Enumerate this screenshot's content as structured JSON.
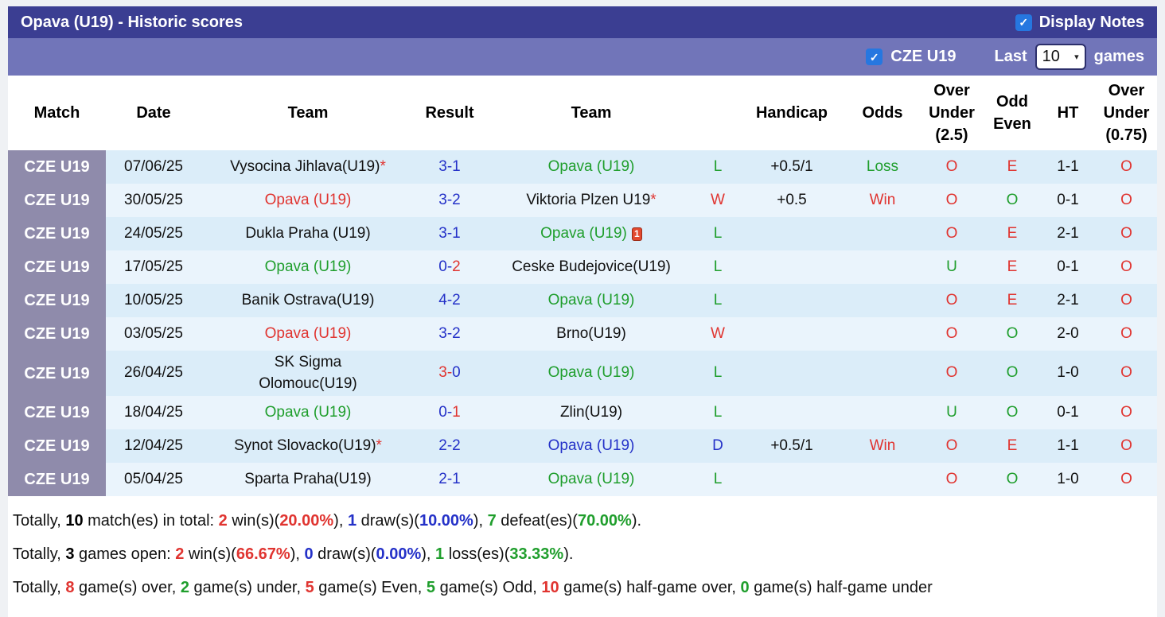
{
  "colors": {
    "header_bar": "#3b3e92",
    "filter_bar": "#7175b9",
    "league_cell": "#8f8bab",
    "row_a": "#dbedf9",
    "row_b": "#eaf4fc",
    "red": "#e03430",
    "green": "#1f9e2c",
    "blue": "#2431c8",
    "checkbox_blue": "#2677e0"
  },
  "icons": {
    "check": "✓",
    "chevron_down": "▾"
  },
  "header": {
    "title": "Opava (U19) - Historic scores",
    "display_notes": {
      "label": "Display Notes",
      "checked": true
    }
  },
  "filter_bar": {
    "league": {
      "label": "CZE U19",
      "checked": true
    },
    "last_label": "Last",
    "games_value": "10",
    "games_label": "games"
  },
  "table": {
    "headers": {
      "match": "Match",
      "date": "Date",
      "team_home": "Team",
      "result": "Result",
      "team_away": "Team",
      "outcome": "",
      "handicap": "Handicap",
      "odds": "Odds",
      "over_under_25": "Over\nUnder\n(2.5)",
      "odd_even": "Odd\nEven",
      "ht": "HT",
      "over_under_075": "Over\nUnder\n(0.75)"
    },
    "rows": [
      {
        "league": "CZE U19",
        "date": "07/06/25",
        "home": {
          "name": "Vysocina Jihlava(U19)",
          "star": "*",
          "card": "",
          "color": "black"
        },
        "result": {
          "h": "3",
          "sep": "-",
          "a": "1",
          "hc": "blue",
          "ac": "blue"
        },
        "away": {
          "name": "Opava (U19)",
          "star": "",
          "card": "",
          "color": "green"
        },
        "outcome": {
          "text": "L",
          "color": "green"
        },
        "handicap": "+0.5/1",
        "odds": {
          "text": "Loss",
          "color": "green"
        },
        "ou25": {
          "text": "O",
          "color": "red"
        },
        "odd_even": {
          "text": "E",
          "color": "red"
        },
        "ht": "1-1",
        "ou075": {
          "text": "O",
          "color": "red"
        }
      },
      {
        "league": "CZE U19",
        "date": "30/05/25",
        "home": {
          "name": "Opava (U19)",
          "star": "",
          "card": "",
          "color": "red"
        },
        "result": {
          "h": "3",
          "sep": "-",
          "a": "2",
          "hc": "blue",
          "ac": "blue"
        },
        "away": {
          "name": "Viktoria Plzen U19",
          "star": "*",
          "card": "",
          "color": "black"
        },
        "outcome": {
          "text": "W",
          "color": "red"
        },
        "handicap": "+0.5",
        "odds": {
          "text": "Win",
          "color": "red"
        },
        "ou25": {
          "text": "O",
          "color": "red"
        },
        "odd_even": {
          "text": "O",
          "color": "green"
        },
        "ht": "0-1",
        "ou075": {
          "text": "O",
          "color": "red"
        }
      },
      {
        "league": "CZE U19",
        "date": "24/05/25",
        "home": {
          "name": "Dukla Praha (U19)",
          "star": "",
          "card": "",
          "color": "black"
        },
        "result": {
          "h": "3",
          "sep": "-",
          "a": "1",
          "hc": "blue",
          "ac": "blue"
        },
        "away": {
          "name": "Opava (U19)",
          "star": "",
          "card": "1",
          "color": "green"
        },
        "outcome": {
          "text": "L",
          "color": "green"
        },
        "handicap": "",
        "odds": {
          "text": "",
          "color": "black"
        },
        "ou25": {
          "text": "O",
          "color": "red"
        },
        "odd_even": {
          "text": "E",
          "color": "red"
        },
        "ht": "2-1",
        "ou075": {
          "text": "O",
          "color": "red"
        }
      },
      {
        "league": "CZE U19",
        "date": "17/05/25",
        "home": {
          "name": "Opava (U19)",
          "star": "",
          "card": "",
          "color": "green"
        },
        "result": {
          "h": "0",
          "sep": "-",
          "a": "2",
          "hc": "blue",
          "ac": "red"
        },
        "away": {
          "name": "Ceske Budejovice(U19)",
          "star": "",
          "card": "",
          "color": "black"
        },
        "outcome": {
          "text": "L",
          "color": "green"
        },
        "handicap": "",
        "odds": {
          "text": "",
          "color": "black"
        },
        "ou25": {
          "text": "U",
          "color": "green"
        },
        "odd_even": {
          "text": "E",
          "color": "red"
        },
        "ht": "0-1",
        "ou075": {
          "text": "O",
          "color": "red"
        }
      },
      {
        "league": "CZE U19",
        "date": "10/05/25",
        "home": {
          "name": "Banik Ostrava(U19)",
          "star": "",
          "card": "",
          "color": "black"
        },
        "result": {
          "h": "4",
          "sep": "-",
          "a": "2",
          "hc": "blue",
          "ac": "blue"
        },
        "away": {
          "name": "Opava (U19)",
          "star": "",
          "card": "",
          "color": "green"
        },
        "outcome": {
          "text": "L",
          "color": "green"
        },
        "handicap": "",
        "odds": {
          "text": "",
          "color": "black"
        },
        "ou25": {
          "text": "O",
          "color": "red"
        },
        "odd_even": {
          "text": "E",
          "color": "red"
        },
        "ht": "2-1",
        "ou075": {
          "text": "O",
          "color": "red"
        }
      },
      {
        "league": "CZE U19",
        "date": "03/05/25",
        "home": {
          "name": "Opava (U19)",
          "star": "",
          "card": "",
          "color": "red"
        },
        "result": {
          "h": "3",
          "sep": "-",
          "a": "2",
          "hc": "blue",
          "ac": "blue"
        },
        "away": {
          "name": "Brno(U19)",
          "star": "",
          "card": "",
          "color": "black"
        },
        "outcome": {
          "text": "W",
          "color": "red"
        },
        "handicap": "",
        "odds": {
          "text": "",
          "color": "black"
        },
        "ou25": {
          "text": "O",
          "color": "red"
        },
        "odd_even": {
          "text": "O",
          "color": "green"
        },
        "ht": "2-0",
        "ou075": {
          "text": "O",
          "color": "red"
        }
      },
      {
        "league": "CZE U19",
        "date": "26/04/25",
        "home": {
          "name": "SK Sigma\nOlomouc(U19)",
          "star": "",
          "card": "",
          "color": "black"
        },
        "result": {
          "h": "3",
          "sep": "-",
          "a": "0",
          "hc": "red",
          "ac": "blue"
        },
        "away": {
          "name": "Opava (U19)",
          "star": "",
          "card": "",
          "color": "green"
        },
        "outcome": {
          "text": "L",
          "color": "green"
        },
        "handicap": "",
        "odds": {
          "text": "",
          "color": "black"
        },
        "ou25": {
          "text": "O",
          "color": "red"
        },
        "odd_even": {
          "text": "O",
          "color": "green"
        },
        "ht": "1-0",
        "ou075": {
          "text": "O",
          "color": "red"
        }
      },
      {
        "league": "CZE U19",
        "date": "18/04/25",
        "home": {
          "name": "Opava (U19)",
          "star": "",
          "card": "",
          "color": "green"
        },
        "result": {
          "h": "0",
          "sep": "-",
          "a": "1",
          "hc": "blue",
          "ac": "red"
        },
        "away": {
          "name": "Zlin(U19)",
          "star": "",
          "card": "",
          "color": "black"
        },
        "outcome": {
          "text": "L",
          "color": "green"
        },
        "handicap": "",
        "odds": {
          "text": "",
          "color": "black"
        },
        "ou25": {
          "text": "U",
          "color": "green"
        },
        "odd_even": {
          "text": "O",
          "color": "green"
        },
        "ht": "0-1",
        "ou075": {
          "text": "O",
          "color": "red"
        }
      },
      {
        "league": "CZE U19",
        "date": "12/04/25",
        "home": {
          "name": "Synot Slovacko(U19)",
          "star": "*",
          "card": "",
          "color": "black"
        },
        "result": {
          "h": "2",
          "sep": "-",
          "a": "2",
          "hc": "blue",
          "ac": "blue"
        },
        "away": {
          "name": "Opava (U19)",
          "star": "",
          "card": "",
          "color": "blue"
        },
        "outcome": {
          "text": "D",
          "color": "blue"
        },
        "handicap": "+0.5/1",
        "odds": {
          "text": "Win",
          "color": "red"
        },
        "ou25": {
          "text": "O",
          "color": "red"
        },
        "odd_even": {
          "text": "E",
          "color": "red"
        },
        "ht": "1-1",
        "ou075": {
          "text": "O",
          "color": "red"
        }
      },
      {
        "league": "CZE U19",
        "date": "05/04/25",
        "home": {
          "name": "Sparta Praha(U19)",
          "star": "",
          "card": "",
          "color": "black"
        },
        "result": {
          "h": "2",
          "sep": "-",
          "a": "1",
          "hc": "blue",
          "ac": "blue"
        },
        "away": {
          "name": "Opava (U19)",
          "star": "",
          "card": "",
          "color": "green"
        },
        "outcome": {
          "text": "L",
          "color": "green"
        },
        "handicap": "",
        "odds": {
          "text": "",
          "color": "black"
        },
        "ou25": {
          "text": "O",
          "color": "red"
        },
        "odd_even": {
          "text": "O",
          "color": "green"
        },
        "ht": "1-0",
        "ou075": {
          "text": "O",
          "color": "red"
        }
      }
    ]
  },
  "summary": {
    "lines": [
      {
        "segments": [
          {
            "text": "Totally, ",
            "color": "black"
          },
          {
            "text": "10",
            "color": "black-b"
          },
          {
            "text": " match(es) in total: ",
            "color": "black"
          },
          {
            "text": "2",
            "color": "red-b"
          },
          {
            "text": " win(s)(",
            "color": "black"
          },
          {
            "text": "20.00%",
            "color": "red-b"
          },
          {
            "text": "), ",
            "color": "black"
          },
          {
            "text": "1",
            "color": "blue-b"
          },
          {
            "text": " draw(s)(",
            "color": "black"
          },
          {
            "text": "10.00%",
            "color": "blue-b"
          },
          {
            "text": "), ",
            "color": "black"
          },
          {
            "text": "7",
            "color": "green-b"
          },
          {
            "text": " defeat(es)(",
            "color": "black"
          },
          {
            "text": "70.00%",
            "color": "green-b"
          },
          {
            "text": ").",
            "color": "black"
          }
        ]
      },
      {
        "segments": [
          {
            "text": "Totally, ",
            "color": "black"
          },
          {
            "text": "3",
            "color": "black-b"
          },
          {
            "text": " games open: ",
            "color": "black"
          },
          {
            "text": "2",
            "color": "red-b"
          },
          {
            "text": " win(s)(",
            "color": "black"
          },
          {
            "text": "66.67%",
            "color": "red-b"
          },
          {
            "text": "), ",
            "color": "black"
          },
          {
            "text": "0",
            "color": "blue-b"
          },
          {
            "text": " draw(s)(",
            "color": "black"
          },
          {
            "text": "0.00%",
            "color": "blue-b"
          },
          {
            "text": "), ",
            "color": "black"
          },
          {
            "text": "1",
            "color": "green-b"
          },
          {
            "text": " loss(es)(",
            "color": "black"
          },
          {
            "text": "33.33%",
            "color": "green-b"
          },
          {
            "text": ").",
            "color": "black"
          }
        ]
      },
      {
        "segments": [
          {
            "text": "Totally, ",
            "color": "black"
          },
          {
            "text": "8",
            "color": "red-b"
          },
          {
            "text": " game(s) over, ",
            "color": "black"
          },
          {
            "text": "2",
            "color": "green-b"
          },
          {
            "text": " game(s) under, ",
            "color": "black"
          },
          {
            "text": "5",
            "color": "red-b"
          },
          {
            "text": " game(s) Even, ",
            "color": "black"
          },
          {
            "text": "5",
            "color": "green-b"
          },
          {
            "text": " game(s) Odd, ",
            "color": "black"
          },
          {
            "text": "10",
            "color": "red-b"
          },
          {
            "text": " game(s) half-game over, ",
            "color": "black"
          },
          {
            "text": "0",
            "color": "green-b"
          },
          {
            "text": " game(s) half-game under",
            "color": "black"
          }
        ]
      }
    ]
  }
}
